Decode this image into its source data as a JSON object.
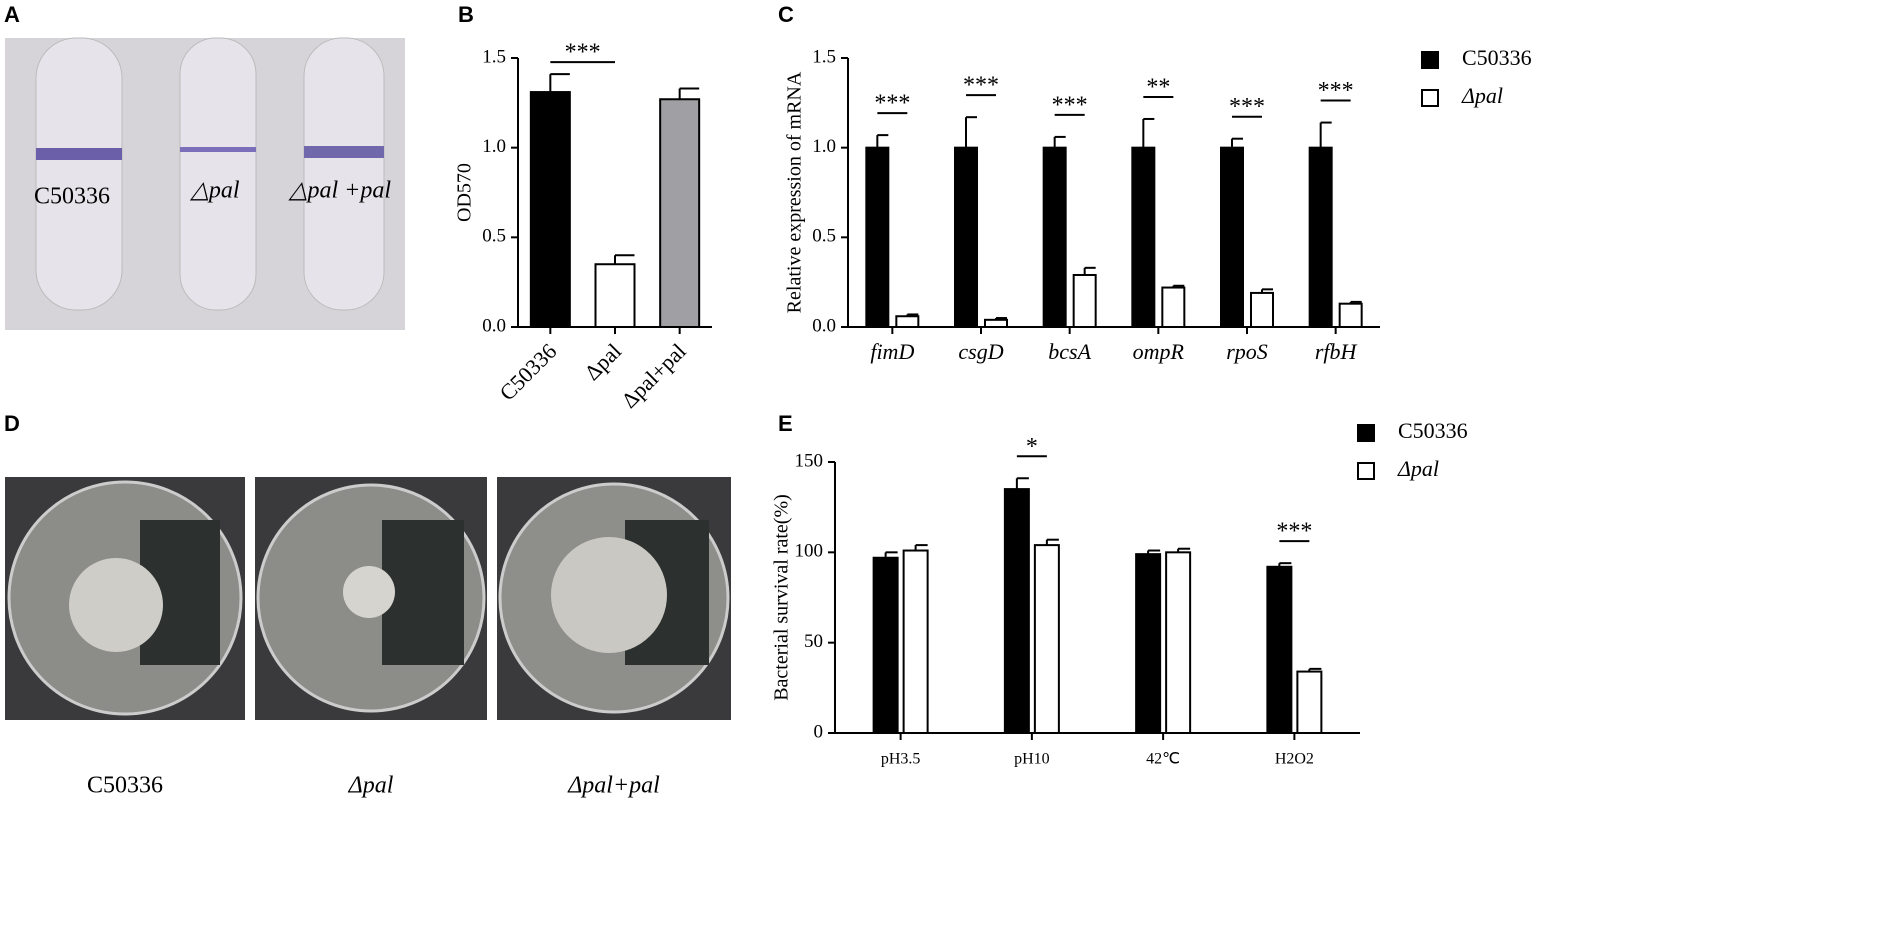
{
  "panel_labels": [
    "A",
    "B",
    "C",
    "D",
    "E"
  ],
  "photo_a": {
    "labels": [
      "C50336",
      "△pal",
      "△pal +pal"
    ]
  },
  "photo_d": {
    "labels": [
      "C50336",
      "Δpal",
      "Δpal+pal"
    ]
  },
  "chart_data": [
    {
      "type": "bar",
      "ylabel": "OD570",
      "categories": [
        "C50336",
        "Δpal",
        "Δpal+pal"
      ],
      "values": [
        1.31,
        0.35,
        1.27
      ],
      "errors": [
        0.1,
        0.05,
        0.06
      ],
      "colors": [
        "#000000",
        "#ffffff",
        "#a0a0a4"
      ],
      "ylim": [
        0,
        1.5
      ],
      "yticks": [
        {
          "value": 0,
          "label": "0.0"
        },
        0.5,
        {
          "value": 1,
          "label": "1.0"
        },
        1.5
      ],
      "annotations": [
        {
          "text": "***",
          "from": 0,
          "to": 1
        }
      ]
    },
    {
      "type": "bar",
      "ylabel": "Relative expression of mRNA",
      "categories": [
        "fimD",
        "csgD",
        "bcsA",
        "ompR",
        "rpoS",
        "rfbH"
      ],
      "series": [
        {
          "name": "C50336",
          "color": "#000000",
          "values": [
            1.0,
            1.0,
            1.0,
            1.0,
            1.0,
            1.0
          ],
          "errors": [
            0.07,
            0.17,
            0.06,
            0.16,
            0.05,
            0.14
          ]
        },
        {
          "name": "Δpal",
          "color": "#ffffff",
          "values": [
            0.06,
            0.04,
            0.29,
            0.22,
            0.19,
            0.13
          ],
          "errors": [
            0.01,
            0.01,
            0.04,
            0.01,
            0.02,
            0.01
          ]
        }
      ],
      "ylim": [
        0,
        1.5
      ],
      "yticks": [
        {
          "value": 0,
          "label": "0.0"
        },
        0.5,
        {
          "value": 1,
          "label": "1.0"
        },
        1.5
      ],
      "annotations": [
        {
          "text": "***",
          "index": 0
        },
        {
          "text": "***",
          "index": 1
        },
        {
          "text": "***",
          "index": 2
        },
        {
          "text": "**",
          "index": 3
        },
        {
          "text": "***",
          "index": 4
        },
        {
          "text": "***",
          "index": 5
        }
      ]
    },
    {
      "type": "bar",
      "ylabel": "Bacterial  survival rate(%)",
      "categories": [
        "pH3.5",
        "pH10",
        "42℃",
        "H2O2"
      ],
      "series": [
        {
          "name": "C50336",
          "color": "#000000",
          "values": [
            97,
            135,
            99,
            92
          ],
          "errors": [
            3,
            6,
            2,
            2
          ]
        },
        {
          "name": "Δpal",
          "color": "#ffffff",
          "values": [
            101,
            104,
            100,
            34
          ],
          "errors": [
            3,
            3,
            2,
            1.5
          ]
        }
      ],
      "ylim": [
        0,
        150
      ],
      "yticks": [
        0,
        50,
        100,
        150
      ],
      "annotations": [
        {
          "text": "*",
          "index": 1
        },
        {
          "text": "***",
          "index": 3
        }
      ]
    }
  ]
}
